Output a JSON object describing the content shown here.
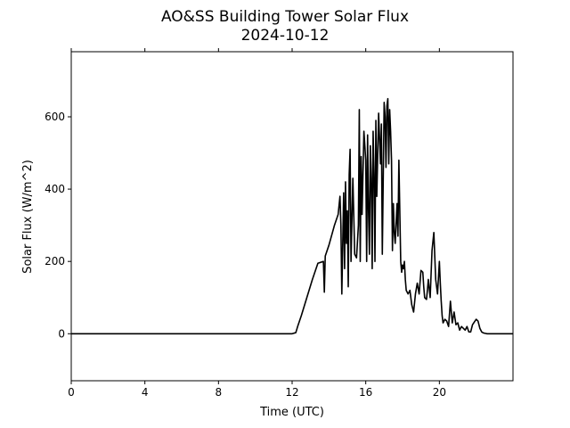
{
  "chart_data": {
    "type": "line",
    "title": "AO&SS Building Tower Solar Flux",
    "subtitle": "2024-10-12",
    "xlabel": "Time (UTC)",
    "ylabel": "Solar Flux (W/m^2)",
    "xlim": [
      0,
      24
    ],
    "ylim": [
      -130,
      780
    ],
    "xticks": [
      0,
      4,
      8,
      12,
      16,
      20
    ],
    "yticks": [
      0,
      200,
      400,
      600
    ],
    "grid": false,
    "series_color": "#000000",
    "series": [
      {
        "x": [
          0,
          4,
          8,
          12,
          12.2,
          12.3,
          12.5,
          12.8,
          13.1,
          13.4,
          13.7,
          13.75,
          13.8,
          14.0,
          14.3,
          14.5,
          14.6,
          14.65,
          14.7,
          14.8,
          14.85,
          14.9,
          14.95,
          15.0,
          15.05,
          15.1,
          15.15,
          15.2,
          15.3,
          15.4,
          15.5,
          15.6,
          15.65,
          15.7,
          15.75,
          15.8,
          15.9,
          16.0,
          16.05,
          16.1,
          16.15,
          16.2,
          16.25,
          16.3,
          16.35,
          16.4,
          16.45,
          16.5,
          16.55,
          16.6,
          16.7,
          16.8,
          16.85,
          16.9,
          17.0,
          17.05,
          17.1,
          17.15,
          17.2,
          17.25,
          17.3,
          17.35,
          17.4,
          17.45,
          17.5,
          17.55,
          17.6,
          17.7,
          17.75,
          17.8,
          17.9,
          17.95,
          18.0,
          18.05,
          18.1,
          18.15,
          18.2,
          18.3,
          18.4,
          18.5,
          18.6,
          18.7,
          18.8,
          18.9,
          19.0,
          19.1,
          19.15,
          19.2,
          19.3,
          19.35,
          19.4,
          19.5,
          19.6,
          19.7,
          19.8,
          19.9,
          20.0,
          20.05,
          20.1,
          20.15,
          20.2,
          20.3,
          20.4,
          20.5,
          20.6,
          20.7,
          20.8,
          20.9,
          21.0,
          21.1,
          21.2,
          21.3,
          21.4,
          21.5,
          21.6,
          21.7,
          21.8,
          22.0,
          22.1,
          22.2,
          22.3,
          22.4,
          22.5,
          22.6,
          22.8,
          23.0,
          23.5,
          24.0
        ],
        "y": [
          0,
          0,
          0,
          0,
          3,
          20,
          50,
          100,
          150,
          195,
          200,
          115,
          215,
          245,
          300,
          330,
          380,
          300,
          110,
          390,
          180,
          420,
          250,
          340,
          130,
          440,
          510,
          200,
          430,
          220,
          210,
          300,
          620,
          200,
          490,
          330,
          560,
          480,
          200,
          550,
          340,
          220,
          520,
          430,
          180,
          560,
          440,
          200,
          590,
          380,
          610,
          470,
          580,
          220,
          640,
          600,
          460,
          630,
          650,
          470,
          620,
          560,
          480,
          230,
          360,
          280,
          250,
          360,
          270,
          480,
          200,
          170,
          190,
          180,
          200,
          150,
          120,
          110,
          120,
          80,
          60,
          110,
          140,
          110,
          175,
          170,
          130,
          100,
          95,
          120,
          150,
          100,
          230,
          280,
          150,
          110,
          200,
          140,
          90,
          50,
          30,
          40,
          35,
          20,
          90,
          30,
          60,
          25,
          30,
          10,
          20,
          15,
          10,
          20,
          5,
          5,
          25,
          40,
          35,
          15,
          5,
          2,
          1,
          0,
          0,
          0,
          0,
          0
        ]
      }
    ]
  }
}
